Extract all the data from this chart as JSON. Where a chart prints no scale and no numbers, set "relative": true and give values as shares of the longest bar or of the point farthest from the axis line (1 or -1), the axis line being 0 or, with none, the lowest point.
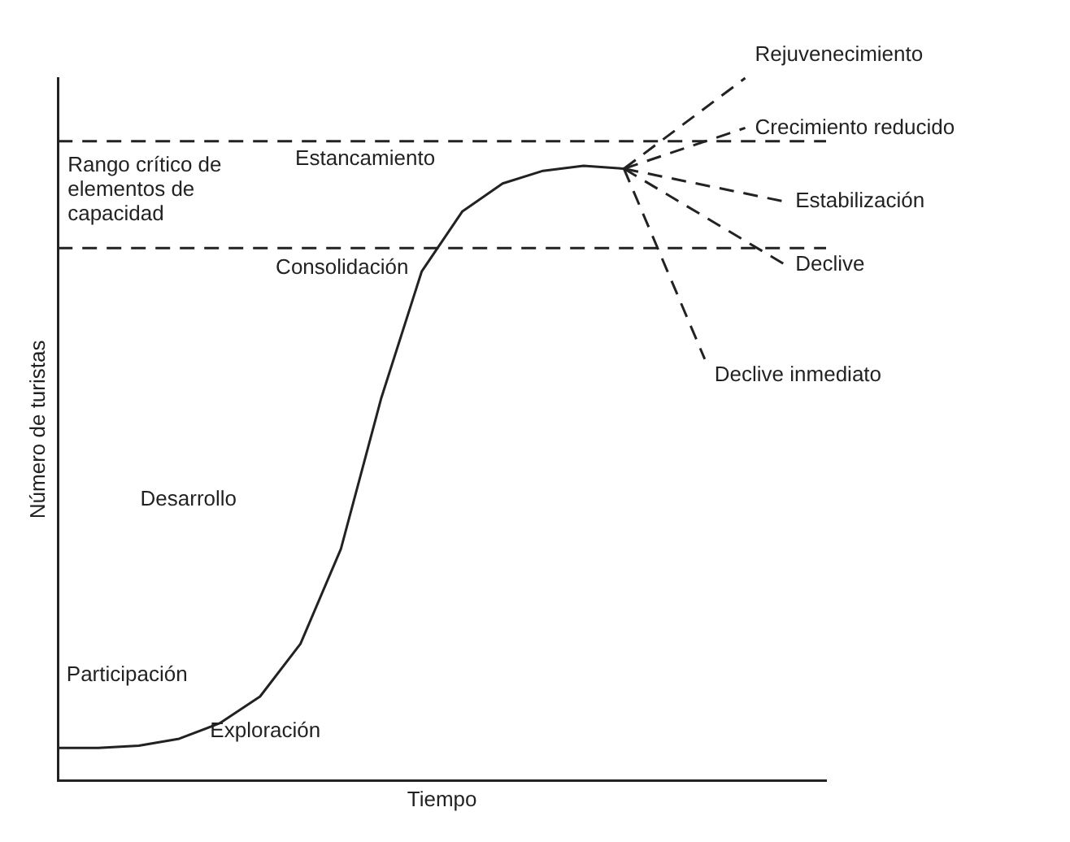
{
  "chart_data": {
    "type": "line",
    "relative": true,
    "xlabel": "Tiempo",
    "ylabel": "Número de turistas",
    "grid": false,
    "legend": false,
    "marker": "none",
    "categories": [
      null,
      null,
      null,
      null,
      null,
      null,
      null,
      null,
      null,
      null,
      null,
      null,
      null,
      null,
      null,
      null,
      null,
      null,
      null,
      null
    ],
    "series": [
      {
        "color": "#222222",
        "line_style": "solid",
        "values": [
          0.047,
          0.047,
          0.05,
          0.06,
          0.082,
          0.12,
          0.195,
          0.33,
          0.545,
          0.725,
          0.81,
          0.85,
          0.868,
          0.875,
          0.871,
          null,
          null,
          null,
          null,
          null
        ]
      },
      {
        "color": "#222222",
        "line_style": "dashed",
        "values": [
          null,
          null,
          null,
          null,
          null,
          null,
          null,
          null,
          null,
          null,
          null,
          null,
          null,
          null,
          0.871,
          null,
          null,
          1.0,
          null,
          null
        ]
      },
      {
        "color": "#222222",
        "line_style": "dashed",
        "values": [
          null,
          null,
          null,
          null,
          null,
          null,
          null,
          null,
          null,
          null,
          null,
          null,
          null,
          null,
          0.871,
          null,
          null,
          0.929,
          null,
          null
        ]
      },
      {
        "color": "#222222",
        "line_style": "dashed",
        "values": [
          null,
          null,
          null,
          null,
          null,
          null,
          null,
          null,
          null,
          null,
          null,
          null,
          null,
          null,
          0.871,
          null,
          null,
          null,
          0.824,
          null
        ]
      },
      {
        "color": "#222222",
        "line_style": "dashed",
        "values": [
          null,
          null,
          null,
          null,
          null,
          null,
          null,
          null,
          null,
          null,
          null,
          null,
          null,
          null,
          0.871,
          null,
          null,
          null,
          0.734,
          null
        ]
      },
      {
        "color": "#222222",
        "line_style": "dashed",
        "values": [
          null,
          null,
          null,
          null,
          null,
          null,
          null,
          null,
          null,
          null,
          null,
          null,
          null,
          null,
          0.871,
          null,
          0.6,
          null,
          null,
          null
        ]
      },
      {
        "color": "#222222",
        "line_style": "dashed",
        "values": [
          0.91,
          0.91,
          0.91,
          0.91,
          0.91,
          0.91,
          0.91,
          0.91,
          0.91,
          0.91,
          0.91,
          0.91,
          0.91,
          0.91,
          0.91,
          0.91,
          0.91,
          0.91,
          0.91,
          0.91
        ]
      },
      {
        "color": "#222222",
        "line_style": "dashed",
        "values": [
          0.758,
          0.758,
          0.758,
          0.758,
          0.758,
          0.758,
          0.758,
          0.758,
          0.758,
          0.758,
          0.758,
          0.758,
          0.758,
          0.758,
          0.758,
          0.758,
          0.758,
          0.758,
          0.758,
          0.758
        ]
      }
    ],
    "annotations": [
      "Rejuvenecimiento",
      "Crecimiento reducido",
      "Estabilización",
      "Declive",
      "Declive inmediato",
      "Rango crítico de elementos de capacidad",
      "Estancamiento",
      "Consolidación",
      "Desarrollo",
      "Participación",
      "Exploración"
    ]
  }
}
